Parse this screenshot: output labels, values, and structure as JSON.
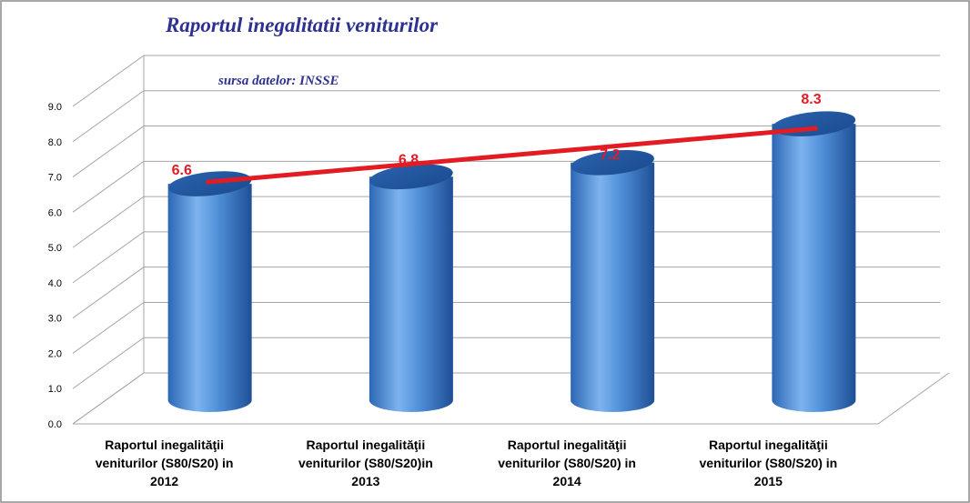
{
  "chart_data": {
    "type": "bar",
    "title": "Raportul inegalitatii veniturilor",
    "subtitle": "sursa datelor: INSSE",
    "categories": [
      [
        "Raportul inegalităţii",
        "veniturilor  (S80/S20)  in",
        "2012"
      ],
      [
        "Raportul inegalităţii",
        "veniturilor  (S80/S20)in",
        "2013"
      ],
      [
        "Raportul inegalităţii",
        "veniturilor  (S80/S20)  in",
        "2014"
      ],
      [
        "Raportul inegalităţii",
        "veniturilor  (S80/S20)  in",
        "2015"
      ]
    ],
    "values": [
      6.6,
      6.8,
      7.2,
      8.3
    ],
    "data_labels": [
      "6.6",
      "6.8",
      "7.2",
      "8.3"
    ],
    "ylim": [
      0,
      9
    ],
    "yticks": [
      "0.0",
      "1.0",
      "2.0",
      "3.0",
      "4.0",
      "5.0",
      "6.0",
      "7.0",
      "8.0",
      "9.0"
    ],
    "trendline": {
      "from": 6.6,
      "to": 8.3
    },
    "grid": true,
    "legend": "none"
  },
  "colors": {
    "bar": "#4f8fd8",
    "bar_dark": "#1f5aa6",
    "title": "#2e3192",
    "subtitle": "#2e3192",
    "labels": "#e31b23",
    "trend": "#e31b23",
    "grid": "#a6a6a6",
    "axis_text": "#000000"
  }
}
